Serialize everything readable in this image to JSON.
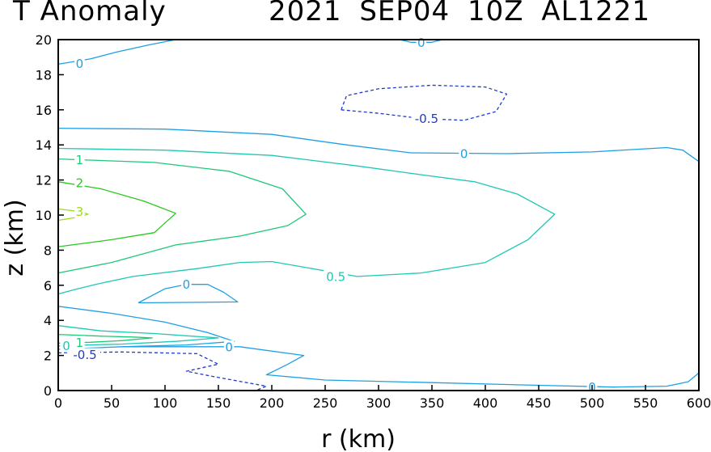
{
  "chart_data": {
    "type": "contour",
    "title_left": "T Anomaly",
    "title_right": "2021 SEP04 10Z AL1221",
    "xlabel": "r (km)",
    "ylabel": "z (km)",
    "xlim": [
      0,
      600
    ],
    "ylim": [
      0,
      20
    ],
    "xticks": [
      0,
      50,
      100,
      150,
      200,
      250,
      300,
      350,
      400,
      450,
      500,
      550,
      600
    ],
    "yticks": [
      0,
      2,
      4,
      6,
      8,
      10,
      12,
      14,
      16,
      18,
      20
    ],
    "colors": {
      "neg": "#1e3ccc",
      "c0": "#1ea0e6",
      "c05": "#1ec8b4",
      "c1": "#1ec878",
      "c2": "#28c81e",
      "c3": "#a0dc1e"
    },
    "contours": [
      {
        "level": "0",
        "color": "#1ea0e6",
        "dashed": false,
        "points": [
          [
            0,
            18.6
          ],
          [
            30,
            18.9
          ],
          [
            55,
            19.3
          ],
          [
            85,
            19.7
          ],
          [
            110,
            20
          ]
        ]
      },
      {
        "level": "0",
        "color": "#1ea0e6",
        "dashed": false,
        "points": [
          [
            320,
            20
          ],
          [
            330,
            19.85
          ],
          [
            340,
            19.85
          ],
          [
            350,
            19.85
          ],
          [
            360,
            20
          ]
        ]
      },
      {
        "level": "0",
        "color": "#1ea0e6",
        "dashed": false,
        "points": [
          [
            0,
            14.95
          ],
          [
            100,
            14.9
          ],
          [
            200,
            14.6
          ],
          [
            270,
            14.0
          ],
          [
            330,
            13.55
          ],
          [
            420,
            13.5
          ],
          [
            500,
            13.6
          ],
          [
            570,
            13.85
          ],
          [
            585,
            13.7
          ],
          [
            600,
            13.05
          ]
        ]
      },
      {
        "level": "0",
        "color": "#1ea0e6",
        "dashed": false,
        "points": [
          [
            75,
            5.0
          ],
          [
            100,
            5.8
          ],
          [
            120,
            6.05
          ],
          [
            140,
            6.05
          ],
          [
            155,
            5.6
          ],
          [
            168,
            5.05
          ],
          [
            75,
            5.0
          ]
        ]
      },
      {
        "level": "0",
        "color": "#1ea0e6",
        "dashed": false,
        "points": [
          [
            0,
            4.8
          ],
          [
            50,
            4.4
          ],
          [
            100,
            3.9
          ],
          [
            140,
            3.3
          ],
          [
            165,
            2.8
          ],
          [
            120,
            2.6
          ],
          [
            60,
            2.5
          ],
          [
            0,
            2.35
          ]
        ]
      },
      {
        "level": "0",
        "color": "#1ea0e6",
        "dashed": false,
        "points": [
          [
            60,
            2.5
          ],
          [
            130,
            2.5
          ],
          [
            170,
            2.5
          ],
          [
            230,
            2.0
          ],
          [
            215,
            1.5
          ],
          [
            195,
            0.9
          ],
          [
            250,
            0.6
          ],
          [
            350,
            0.45
          ],
          [
            450,
            0.3
          ],
          [
            520,
            0.2
          ],
          [
            570,
            0.25
          ],
          [
            590,
            0.5
          ],
          [
            600,
            1.0
          ]
        ]
      },
      {
        "level": "0.5",
        "color": "#1ec8b4",
        "dashed": false,
        "points": [
          [
            0,
            13.8
          ],
          [
            100,
            13.7
          ],
          [
            200,
            13.4
          ],
          [
            280,
            12.8
          ],
          [
            340,
            12.3
          ],
          [
            390,
            11.9
          ],
          [
            430,
            11.2
          ],
          [
            465,
            10.05
          ],
          [
            440,
            8.6
          ],
          [
            400,
            7.3
          ],
          [
            340,
            6.7
          ],
          [
            280,
            6.5
          ],
          [
            200,
            7.35
          ],
          [
            170,
            7.3
          ],
          [
            130,
            6.95
          ],
          [
            70,
            6.5
          ],
          [
            35,
            6.05
          ],
          [
            15,
            5.75
          ],
          [
            0,
            5.5
          ]
        ]
      },
      {
        "level": "0.5",
        "color": "#1ec8b4",
        "dashed": false,
        "points": [
          [
            0,
            3.7
          ],
          [
            40,
            3.4
          ],
          [
            90,
            3.25
          ],
          [
            125,
            3.1
          ],
          [
            150,
            3.0
          ],
          [
            110,
            2.8
          ],
          [
            60,
            2.65
          ],
          [
            0,
            2.55
          ]
        ]
      },
      {
        "level": "1",
        "color": "#1ec878",
        "dashed": false,
        "points": [
          [
            0,
            13.2
          ],
          [
            90,
            13.0
          ],
          [
            160,
            12.5
          ],
          [
            210,
            11.5
          ],
          [
            232,
            10.05
          ],
          [
            215,
            9.4
          ],
          [
            170,
            8.8
          ],
          [
            110,
            8.3
          ],
          [
            50,
            7.3
          ],
          [
            0,
            6.7
          ]
        ]
      },
      {
        "level": "1",
        "color": "#1ec878",
        "dashed": false,
        "points": [
          [
            0,
            3.2
          ],
          [
            40,
            3.1
          ],
          [
            70,
            3.05
          ],
          [
            88,
            3.0
          ],
          [
            60,
            2.85
          ],
          [
            30,
            2.75
          ],
          [
            0,
            2.7
          ]
        ]
      },
      {
        "level": "2",
        "color": "#28c81e",
        "dashed": false,
        "points": [
          [
            0,
            11.9
          ],
          [
            40,
            11.5
          ],
          [
            80,
            10.8
          ],
          [
            110,
            10.1
          ],
          [
            90,
            9.0
          ],
          [
            50,
            8.6
          ],
          [
            0,
            8.2
          ]
        ]
      },
      {
        "level": "3",
        "color": "#a0dc1e",
        "dashed": false,
        "points": [
          [
            0,
            10.35
          ],
          [
            20,
            10.2
          ],
          [
            28,
            10.05
          ],
          [
            20,
            9.9
          ],
          [
            0,
            9.7
          ]
        ]
      },
      {
        "level": "-0.5",
        "color": "#1e3ccc",
        "dashed": true,
        "points": [
          [
            265,
            16.0
          ],
          [
            300,
            15.8
          ],
          [
            340,
            15.5
          ],
          [
            380,
            15.4
          ],
          [
            410,
            15.9
          ],
          [
            420,
            16.9
          ],
          [
            400,
            17.3
          ],
          [
            350,
            17.4
          ],
          [
            300,
            17.2
          ],
          [
            270,
            16.8
          ],
          [
            265,
            16.0
          ]
        ]
      },
      {
        "level": "-0.5",
        "color": "#1e3ccc",
        "dashed": true,
        "points": [
          [
            0,
            2.15
          ],
          [
            60,
            2.2
          ],
          [
            130,
            2.1
          ],
          [
            150,
            1.5
          ],
          [
            120,
            1.1
          ],
          [
            145,
            0.8
          ],
          [
            195,
            0.25
          ],
          [
            185,
            0
          ]
        ]
      }
    ],
    "labels": [
      {
        "text": "0",
        "x": 20,
        "y": 18.65,
        "color": "#1ea0e6"
      },
      {
        "text": "0",
        "x": 340,
        "y": 19.85,
        "color": "#1ea0e6"
      },
      {
        "text": "-0.5",
        "x": 345,
        "y": 15.5,
        "color": "#1e3ccc"
      },
      {
        "text": "0",
        "x": 380,
        "y": 13.5,
        "color": "#1ea0e6"
      },
      {
        "text": "1",
        "x": 20,
        "y": 13.15,
        "color": "#1ec878"
      },
      {
        "text": "2",
        "x": 20,
        "y": 11.85,
        "color": "#28c81e"
      },
      {
        "text": "3",
        "x": 20,
        "y": 10.2,
        "color": "#a0dc1e"
      },
      {
        "text": "0",
        "x": 120,
        "y": 6.05,
        "color": "#1ea0e6"
      },
      {
        "text": "0.5",
        "x": 260,
        "y": 6.5,
        "color": "#1ec8b4"
      },
      {
        "text": "0",
        "x": 160,
        "y": 2.5,
        "color": "#1ea0e6"
      },
      {
        "text": "0.5",
        "x": 13,
        "y": 2.55,
        "color": "#1ec8b4"
      },
      {
        "text": "1",
        "x": 20,
        "y": 2.75,
        "color": "#1ec878"
      },
      {
        "text": "-0.5",
        "x": 25,
        "y": 2.05,
        "color": "#1e3ccc"
      },
      {
        "text": "0",
        "x": 500,
        "y": 0.2,
        "color": "#1ea0e6"
      }
    ]
  }
}
